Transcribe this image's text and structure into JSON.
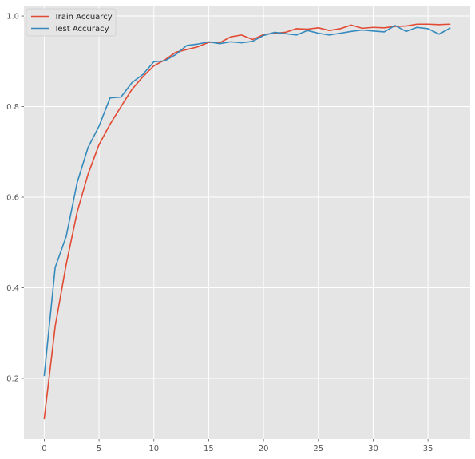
{
  "chart_data": {
    "type": "line",
    "title": "",
    "xlabel": "",
    "ylabel": "",
    "xlim": [
      -1.85,
      38.85
    ],
    "ylim": [
      0.066,
      1.023
    ],
    "xticks": [
      0,
      5,
      10,
      15,
      20,
      25,
      30,
      35
    ],
    "yticks": [
      0.2,
      0.4,
      0.6,
      0.8,
      1.0
    ],
    "xtick_labels": [
      "0",
      "5",
      "10",
      "15",
      "20",
      "25",
      "30",
      "35"
    ],
    "ytick_labels": [
      "0.2",
      "0.4",
      "0.6",
      "0.8",
      "1.0"
    ],
    "grid": true,
    "legend_position": "top-left",
    "background_color": "#e5e5e5",
    "grid_color": "#ffffff",
    "x": [
      0,
      1,
      2,
      3,
      4,
      5,
      6,
      7,
      8,
      9,
      10,
      11,
      12,
      13,
      14,
      15,
      16,
      17,
      18,
      19,
      20,
      21,
      22,
      23,
      24,
      25,
      26,
      27,
      28,
      29,
      30,
      31,
      32,
      33,
      34,
      35,
      36,
      37
    ],
    "series": [
      {
        "name": "Train Accuarcy",
        "color": "#e24a33",
        "values": [
          0.111,
          0.315,
          0.451,
          0.567,
          0.651,
          0.716,
          0.761,
          0.8,
          0.838,
          0.866,
          0.89,
          0.903,
          0.92,
          0.926,
          0.932,
          0.942,
          0.941,
          0.954,
          0.958,
          0.948,
          0.959,
          0.962,
          0.964,
          0.972,
          0.971,
          0.974,
          0.968,
          0.972,
          0.98,
          0.973,
          0.975,
          0.974,
          0.977,
          0.978,
          0.982,
          0.982,
          0.981,
          0.982
        ]
      },
      {
        "name": "Test Accuracy",
        "color": "#348abd",
        "values": [
          0.206,
          0.445,
          0.513,
          0.632,
          0.71,
          0.757,
          0.819,
          0.821,
          0.853,
          0.871,
          0.899,
          0.901,
          0.915,
          0.935,
          0.938,
          0.943,
          0.939,
          0.943,
          0.941,
          0.944,
          0.957,
          0.964,
          0.961,
          0.958,
          0.968,
          0.962,
          0.958,
          0.962,
          0.966,
          0.969,
          0.967,
          0.965,
          0.979,
          0.966,
          0.975,
          0.972,
          0.96,
          0.973
        ]
      }
    ]
  }
}
